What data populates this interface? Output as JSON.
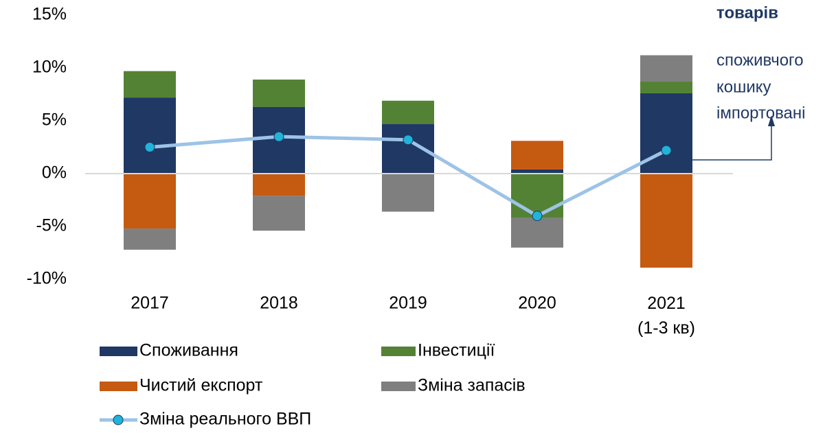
{
  "chart_data": {
    "type": "stacked_bar_line",
    "categories": [
      "2017",
      "2018",
      "2019",
      "2020",
      "2021 (1-3 кв)"
    ],
    "series": [
      {
        "name": "Споживання",
        "color": "#1f3864",
        "values": [
          7.2,
          6.3,
          4.7,
          0.4,
          7.6
        ]
      },
      {
        "name": "Інвестиції",
        "color": "#548235",
        "values": [
          2.5,
          2.6,
          2.2,
          -4.2,
          1.1
        ]
      },
      {
        "name": "Чистий експорт",
        "color": "#c55a11",
        "values": [
          -5.2,
          -2.1,
          0,
          2.7,
          -8.9
        ]
      },
      {
        "name": "Зміна запасів",
        "color": "#7f7f7f",
        "values": [
          -2.0,
          -3.3,
          -3.6,
          -2.8,
          2.5
        ]
      }
    ],
    "line": {
      "name": "Зміна реального ВВП",
      "color": "#9dc3e6",
      "marker_color": "#1fb4d8",
      "values": [
        2.5,
        3.5,
        3.2,
        -4.0,
        2.2
      ]
    },
    "ylim": [
      -10,
      15
    ],
    "yticks": [
      {
        "value": -10,
        "label": "-10%"
      },
      {
        "value": -5,
        "label": "-5%"
      },
      {
        "value": 0,
        "label": "0%"
      },
      {
        "value": 5,
        "label": "5%"
      },
      {
        "value": 10,
        "label": "10%"
      },
      {
        "value": 15,
        "label": "15%"
      }
    ],
    "annotation": {
      "bold": "товарів",
      "lines": [
        "споживчого",
        "кошику",
        "імпортовані"
      ]
    }
  }
}
